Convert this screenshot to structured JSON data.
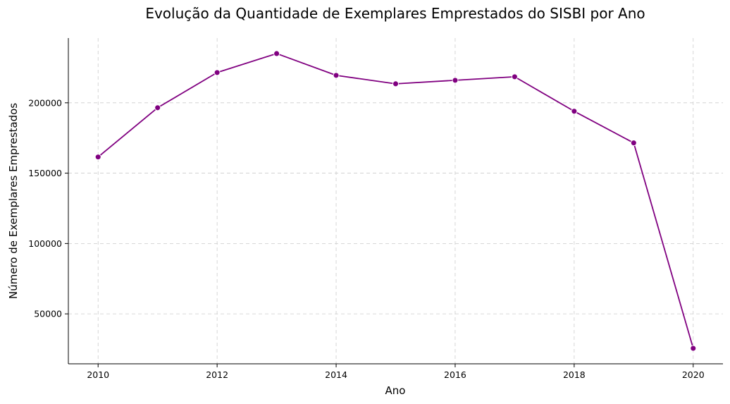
{
  "chart_data": {
    "type": "line",
    "title": "Evolução da Quantidade de Exemplares Emprestados do SISBI por Ano",
    "xlabel": "Ano",
    "ylabel": "Número de Exemplares Emprestados",
    "x": [
      2010,
      2011,
      2012,
      2013,
      2014,
      2015,
      2016,
      2017,
      2018,
      2019,
      2020
    ],
    "series": [
      {
        "values": [
          161500,
          196500,
          221500,
          235000,
          219500,
          213500,
          216000,
          218500,
          194000,
          171500,
          25500
        ],
        "color": "#800080",
        "marker": "circle"
      }
    ],
    "xlim": [
      2009.5,
      2020.5
    ],
    "ylim": [
      14500,
      246000
    ],
    "xticks": [
      2010,
      2012,
      2014,
      2016,
      2018,
      2020
    ],
    "yticks": [
      50000,
      100000,
      150000,
      200000
    ],
    "ytick_labels": [
      "50000",
      "100000",
      "150000",
      "200000"
    ],
    "xtick_labels": [
      "2010",
      "2012",
      "2014",
      "2016",
      "2018",
      "2020"
    ],
    "grid": true,
    "grid_style": "dashed",
    "legend": "none"
  }
}
